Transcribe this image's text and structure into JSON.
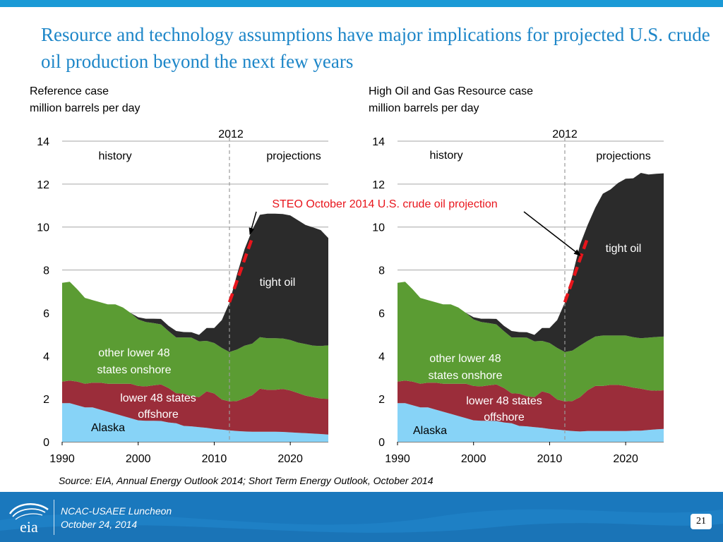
{
  "slide": {
    "title": "Resource and technology assumptions have major implications for projected U.S. crude oil production beyond the next few years",
    "source": "Source:  EIA, Annual Energy Outlook 2014; Short Term Energy Outlook, October 2014",
    "footer_line1": "NCAC-USAEE Luncheon",
    "footer_line2": "October 24, 2014",
    "logo_text": "eia",
    "page_number": "21"
  },
  "steo_label": "STEO October 2014 U.S. crude oil projection",
  "colors": {
    "alaska": "#87d3f7",
    "offshore": "#9b2d3a",
    "onshore": "#5b9c33",
    "tight_oil": "#2b2b2b",
    "steo": "#e8151c",
    "steo_text": "#e8151c",
    "title": "#1d86c8",
    "grid": "#a6a6a6",
    "footer": "#1a78bd"
  },
  "chart_data": [
    {
      "type": "area",
      "title": "Reference case",
      "subtitle": "million barrels per day",
      "x": [
        1990,
        1991,
        1992,
        1993,
        1994,
        1995,
        1996,
        1997,
        1998,
        1999,
        2000,
        2001,
        2002,
        2003,
        2004,
        2005,
        2006,
        2007,
        2008,
        2009,
        2010,
        2011,
        2012,
        2013,
        2014,
        2015,
        2016,
        2017,
        2018,
        2019,
        2020,
        2021,
        2022,
        2023,
        2024,
        2025
      ],
      "xlim": [
        1990,
        2025
      ],
      "ylim": [
        0,
        14
      ],
      "xticks": [
        1990,
        2000,
        2010,
        2020
      ],
      "yticks": [
        0,
        2,
        4,
        6,
        8,
        10,
        12,
        14
      ],
      "divider": {
        "x": 2012,
        "label": "2012"
      },
      "region_labels": {
        "history": "history",
        "projections": "projections"
      },
      "series": [
        {
          "name": "Alaska",
          "key": "alaska",
          "values": [
            1.8,
            1.8,
            1.7,
            1.6,
            1.6,
            1.5,
            1.4,
            1.3,
            1.2,
            1.1,
            1.0,
            0.98,
            0.98,
            0.97,
            0.9,
            0.86,
            0.74,
            0.72,
            0.68,
            0.65,
            0.6,
            0.57,
            0.53,
            0.5,
            0.48,
            0.47,
            0.47,
            0.47,
            0.47,
            0.46,
            0.44,
            0.42,
            0.4,
            0.38,
            0.36,
            0.34
          ]
        },
        {
          "name": "lower 48 states offshore",
          "key": "offshore",
          "values": [
            1.0,
            1.05,
            1.1,
            1.1,
            1.15,
            1.25,
            1.3,
            1.4,
            1.5,
            1.6,
            1.6,
            1.6,
            1.65,
            1.7,
            1.6,
            1.4,
            1.5,
            1.4,
            1.4,
            1.7,
            1.65,
            1.4,
            1.35,
            1.4,
            1.55,
            1.7,
            2.0,
            1.95,
            1.95,
            2.0,
            1.95,
            1.85,
            1.75,
            1.7,
            1.65,
            1.65
          ]
        },
        {
          "name": "other lower 48 states onshore",
          "key": "onshore",
          "values": [
            4.6,
            4.6,
            4.3,
            4.0,
            3.85,
            3.75,
            3.7,
            3.7,
            3.55,
            3.3,
            3.1,
            3.0,
            2.9,
            2.8,
            2.65,
            2.6,
            2.62,
            2.73,
            2.6,
            2.35,
            2.35,
            2.4,
            2.3,
            2.4,
            2.45,
            2.4,
            2.4,
            2.4,
            2.4,
            2.35,
            2.35,
            2.35,
            2.4,
            2.4,
            2.45,
            2.5
          ]
        },
        {
          "name": "tight oil",
          "key": "tight_oil",
          "values": [
            0,
            0,
            0,
            0,
            0,
            0,
            0,
            0,
            0,
            0,
            0.1,
            0.15,
            0.2,
            0.25,
            0.25,
            0.3,
            0.25,
            0.25,
            0.3,
            0.6,
            0.7,
            1.3,
            2.3,
            3.5,
            4.5,
            5.3,
            5.7,
            5.8,
            5.8,
            5.8,
            5.8,
            5.7,
            5.55,
            5.5,
            5.4,
            5.0
          ]
        }
      ],
      "annotations": [
        "tight oil",
        "other lower 48 states onshore",
        "lower 48 states offshore",
        "Alaska"
      ],
      "steo": [
        [
          2012,
          6.5
        ],
        [
          2015,
          9.5
        ]
      ]
    },
    {
      "type": "area",
      "title": "High Oil and Gas Resource case",
      "subtitle": "million barrels per day",
      "x": [
        1990,
        1991,
        1992,
        1993,
        1994,
        1995,
        1996,
        1997,
        1998,
        1999,
        2000,
        2001,
        2002,
        2003,
        2004,
        2005,
        2006,
        2007,
        2008,
        2009,
        2010,
        2011,
        2012,
        2013,
        2014,
        2015,
        2016,
        2017,
        2018,
        2019,
        2020,
        2021,
        2022,
        2023,
        2024,
        2025
      ],
      "xlim": [
        1990,
        2025
      ],
      "ylim": [
        0,
        14
      ],
      "xticks": [
        1990,
        2000,
        2010,
        2020
      ],
      "yticks": [
        0,
        2,
        4,
        6,
        8,
        10,
        12,
        14
      ],
      "divider": {
        "x": 2012,
        "label": "2012"
      },
      "region_labels": {
        "history": "history",
        "projections": "projections"
      },
      "series": [
        {
          "name": "Alaska",
          "key": "alaska",
          "values": [
            1.8,
            1.8,
            1.7,
            1.6,
            1.6,
            1.5,
            1.4,
            1.3,
            1.2,
            1.1,
            1.0,
            0.98,
            0.98,
            0.97,
            0.9,
            0.86,
            0.74,
            0.72,
            0.68,
            0.65,
            0.6,
            0.57,
            0.53,
            0.5,
            0.48,
            0.5,
            0.5,
            0.5,
            0.5,
            0.5,
            0.5,
            0.52,
            0.52,
            0.55,
            0.58,
            0.6
          ]
        },
        {
          "name": "lower 48 states offshore",
          "key": "offshore",
          "values": [
            1.0,
            1.05,
            1.1,
            1.1,
            1.15,
            1.25,
            1.3,
            1.4,
            1.5,
            1.6,
            1.6,
            1.6,
            1.65,
            1.7,
            1.6,
            1.4,
            1.5,
            1.4,
            1.4,
            1.7,
            1.65,
            1.4,
            1.35,
            1.4,
            1.6,
            1.9,
            2.1,
            2.1,
            2.15,
            2.15,
            2.1,
            2.0,
            1.95,
            1.85,
            1.8,
            1.8
          ]
        },
        {
          "name": "other lower 48 states onshore",
          "key": "onshore",
          "values": [
            4.6,
            4.6,
            4.3,
            4.0,
            3.85,
            3.75,
            3.7,
            3.7,
            3.55,
            3.3,
            3.1,
            3.0,
            2.9,
            2.8,
            2.65,
            2.6,
            2.62,
            2.73,
            2.6,
            2.35,
            2.35,
            2.4,
            2.3,
            2.35,
            2.4,
            2.3,
            2.3,
            2.35,
            2.3,
            2.3,
            2.35,
            2.35,
            2.35,
            2.45,
            2.5,
            2.5
          ]
        },
        {
          "name": "tight oil",
          "key": "tight_oil",
          "values": [
            0,
            0,
            0,
            0,
            0,
            0,
            0,
            0,
            0,
            0,
            0.1,
            0.15,
            0.2,
            0.25,
            0.25,
            0.3,
            0.25,
            0.25,
            0.3,
            0.6,
            0.7,
            1.3,
            2.3,
            3.5,
            4.7,
            5.4,
            6.0,
            6.6,
            6.8,
            7.1,
            7.3,
            7.4,
            7.7,
            7.6,
            7.6,
            7.6
          ]
        }
      ],
      "annotations": [
        "tight oil",
        "other lower 48 states onshore",
        "lower 48 states offshore",
        "Alaska"
      ],
      "steo": [
        [
          2012,
          6.5
        ],
        [
          2015,
          9.5
        ]
      ]
    }
  ]
}
